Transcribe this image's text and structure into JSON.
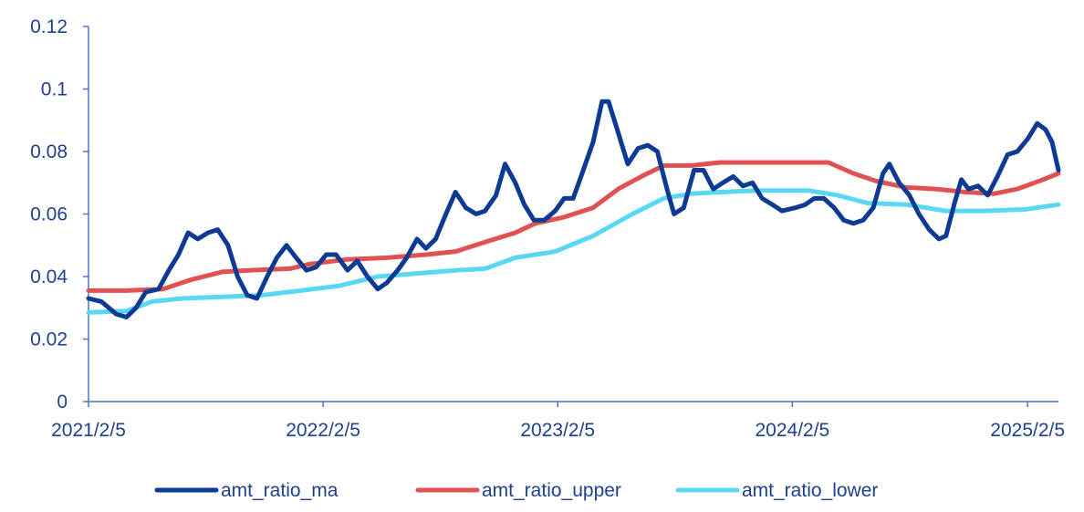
{
  "chart_data": {
    "type": "line",
    "title": "",
    "xlabel": "",
    "ylabel": "",
    "ylim": [
      0,
      0.12
    ],
    "y_ticks": [
      "0",
      "0.02",
      "0.04",
      "0.06",
      "0.08",
      "0.1",
      "0.12"
    ],
    "y_tick_values": [
      0,
      0.02,
      0.04,
      0.06,
      0.08,
      0.1,
      0.12
    ],
    "x_ticks": [
      "2021/2/5",
      "2022/2/5",
      "2023/2/5",
      "2024/2/5",
      "2025/2/5"
    ],
    "x_tick_dates": [
      "2021-02-05",
      "2022-02-05",
      "2023-02-05",
      "2024-02-05",
      "2025-02-05"
    ],
    "x_range": [
      "2021-02-05",
      "2025-03-25"
    ],
    "grid": false,
    "legend_position": "bottom",
    "series": [
      {
        "name": "amt_ratio_ma",
        "color": "#0d3a93",
        "points": [
          [
            "2021-02-05",
            0.033
          ],
          [
            "2021-02-25",
            0.032
          ],
          [
            "2021-03-20",
            0.028
          ],
          [
            "2021-04-05",
            0.027
          ],
          [
            "2021-04-20",
            0.03
          ],
          [
            "2021-05-05",
            0.035
          ],
          [
            "2021-05-25",
            0.036
          ],
          [
            "2021-06-10",
            0.042
          ],
          [
            "2021-06-25",
            0.047
          ],
          [
            "2021-07-10",
            0.054
          ],
          [
            "2021-07-25",
            0.052
          ],
          [
            "2021-08-10",
            0.054
          ],
          [
            "2021-08-25",
            0.055
          ],
          [
            "2021-09-10",
            0.05
          ],
          [
            "2021-09-25",
            0.04
          ],
          [
            "2021-10-10",
            0.034
          ],
          [
            "2021-10-25",
            0.033
          ],
          [
            "2021-11-10",
            0.04
          ],
          [
            "2021-11-25",
            0.046
          ],
          [
            "2021-12-10",
            0.05
          ],
          [
            "2021-12-25",
            0.046
          ],
          [
            "2022-01-10",
            0.042
          ],
          [
            "2022-01-25",
            0.043
          ],
          [
            "2022-02-10",
            0.047
          ],
          [
            "2022-02-25",
            0.047
          ],
          [
            "2022-03-15",
            0.042
          ],
          [
            "2022-03-30",
            0.045
          ],
          [
            "2022-04-15",
            0.04
          ],
          [
            "2022-05-01",
            0.036
          ],
          [
            "2022-05-15",
            0.038
          ],
          [
            "2022-06-01",
            0.042
          ],
          [
            "2022-06-15",
            0.046
          ],
          [
            "2022-07-01",
            0.052
          ],
          [
            "2022-07-15",
            0.049
          ],
          [
            "2022-07-30",
            0.052
          ],
          [
            "2022-08-15",
            0.06
          ],
          [
            "2022-08-30",
            0.067
          ],
          [
            "2022-09-15",
            0.062
          ],
          [
            "2022-10-01",
            0.06
          ],
          [
            "2022-10-15",
            0.061
          ],
          [
            "2022-11-01",
            0.066
          ],
          [
            "2022-11-15",
            0.076
          ],
          [
            "2022-12-01",
            0.07
          ],
          [
            "2022-12-15",
            0.063
          ],
          [
            "2022-12-30",
            0.058
          ],
          [
            "2023-01-15",
            0.058
          ],
          [
            "2023-02-01",
            0.061
          ],
          [
            "2023-02-15",
            0.065
          ],
          [
            "2023-03-01",
            0.065
          ],
          [
            "2023-03-15",
            0.073
          ],
          [
            "2023-04-01",
            0.083
          ],
          [
            "2023-04-15",
            0.096
          ],
          [
            "2023-04-25",
            0.096
          ],
          [
            "2023-05-10",
            0.086
          ],
          [
            "2023-05-25",
            0.076
          ],
          [
            "2023-06-10",
            0.081
          ],
          [
            "2023-06-25",
            0.082
          ],
          [
            "2023-07-10",
            0.08
          ],
          [
            "2023-07-25",
            0.068
          ],
          [
            "2023-08-05",
            0.06
          ],
          [
            "2023-08-20",
            0.062
          ],
          [
            "2023-09-05",
            0.074
          ],
          [
            "2023-09-20",
            0.074
          ],
          [
            "2023-10-05",
            0.068
          ],
          [
            "2023-10-20",
            0.07
          ],
          [
            "2023-11-05",
            0.072
          ],
          [
            "2023-11-20",
            0.069
          ],
          [
            "2023-12-05",
            0.07
          ],
          [
            "2023-12-20",
            0.065
          ],
          [
            "2024-01-05",
            0.063
          ],
          [
            "2024-01-20",
            0.061
          ],
          [
            "2024-02-10",
            0.062
          ],
          [
            "2024-02-25",
            0.063
          ],
          [
            "2024-03-10",
            0.065
          ],
          [
            "2024-03-25",
            0.065
          ],
          [
            "2024-04-10",
            0.062
          ],
          [
            "2024-04-25",
            0.058
          ],
          [
            "2024-05-10",
            0.057
          ],
          [
            "2024-05-25",
            0.058
          ],
          [
            "2024-06-10",
            0.062
          ],
          [
            "2024-06-25",
            0.073
          ],
          [
            "2024-07-05",
            0.076
          ],
          [
            "2024-07-20",
            0.07
          ],
          [
            "2024-08-05",
            0.066
          ],
          [
            "2024-08-20",
            0.06
          ],
          [
            "2024-09-05",
            0.055
          ],
          [
            "2024-09-20",
            0.052
          ],
          [
            "2024-10-01",
            0.053
          ],
          [
            "2024-10-15",
            0.064
          ],
          [
            "2024-10-25",
            0.071
          ],
          [
            "2024-11-05",
            0.068
          ],
          [
            "2024-11-20",
            0.069
          ],
          [
            "2024-12-05",
            0.066
          ],
          [
            "2024-12-20",
            0.072
          ],
          [
            "2025-01-05",
            0.079
          ],
          [
            "2025-01-20",
            0.08
          ],
          [
            "2025-02-05",
            0.084
          ],
          [
            "2025-02-20",
            0.089
          ],
          [
            "2025-03-05",
            0.087
          ],
          [
            "2025-03-15",
            0.083
          ],
          [
            "2025-03-25",
            0.074
          ]
        ]
      },
      {
        "name": "amt_ratio_upper",
        "color": "#e05252",
        "points": [
          [
            "2021-02-05",
            0.0355
          ],
          [
            "2021-04-05",
            0.0355
          ],
          [
            "2021-06-01",
            0.036
          ],
          [
            "2021-07-15",
            0.039
          ],
          [
            "2021-09-01",
            0.0415
          ],
          [
            "2021-10-15",
            0.042
          ],
          [
            "2021-12-15",
            0.0425
          ],
          [
            "2022-01-15",
            0.044
          ],
          [
            "2022-03-15",
            0.0455
          ],
          [
            "2022-05-15",
            0.046
          ],
          [
            "2022-07-15",
            0.047
          ],
          [
            "2022-08-30",
            0.048
          ],
          [
            "2022-10-15",
            0.051
          ],
          [
            "2022-12-01",
            0.054
          ],
          [
            "2023-01-01",
            0.057
          ],
          [
            "2023-02-15",
            0.059
          ],
          [
            "2023-04-01",
            0.062
          ],
          [
            "2023-05-10",
            0.068
          ],
          [
            "2023-06-15",
            0.072
          ],
          [
            "2023-07-20",
            0.0755
          ],
          [
            "2023-09-01",
            0.0755
          ],
          [
            "2023-10-15",
            0.0765
          ],
          [
            "2023-12-01",
            0.0765
          ],
          [
            "2024-02-01",
            0.0765
          ],
          [
            "2024-04-01",
            0.0765
          ],
          [
            "2024-05-10",
            0.073
          ],
          [
            "2024-06-15",
            0.0705
          ],
          [
            "2024-08-01",
            0.0685
          ],
          [
            "2024-09-15",
            0.068
          ],
          [
            "2024-11-01",
            0.067
          ],
          [
            "2024-12-15",
            0.0665
          ],
          [
            "2025-01-20",
            0.068
          ],
          [
            "2025-03-01",
            0.071
          ],
          [
            "2025-03-25",
            0.073
          ]
        ]
      },
      {
        "name": "amt_ratio_lower",
        "color": "#5ad7f5",
        "points": [
          [
            "2021-02-05",
            0.0285
          ],
          [
            "2021-04-05",
            0.029
          ],
          [
            "2021-05-15",
            0.032
          ],
          [
            "2021-07-01",
            0.033
          ],
          [
            "2021-09-01",
            0.0335
          ],
          [
            "2021-11-01",
            0.034
          ],
          [
            "2022-01-01",
            0.0355
          ],
          [
            "2022-03-01",
            0.037
          ],
          [
            "2022-05-01",
            0.04
          ],
          [
            "2022-07-01",
            0.041
          ],
          [
            "2022-09-01",
            0.042
          ],
          [
            "2022-10-15",
            0.0425
          ],
          [
            "2022-12-01",
            0.046
          ],
          [
            "2023-02-01",
            0.048
          ],
          [
            "2023-04-01",
            0.053
          ],
          [
            "2023-06-01",
            0.06
          ],
          [
            "2023-07-20",
            0.065
          ],
          [
            "2023-09-01",
            0.0665
          ],
          [
            "2023-10-15",
            0.067
          ],
          [
            "2023-12-15",
            0.0675
          ],
          [
            "2024-03-01",
            0.0675
          ],
          [
            "2024-04-15",
            0.066
          ],
          [
            "2024-06-01",
            0.0635
          ],
          [
            "2024-08-01",
            0.063
          ],
          [
            "2024-10-01",
            0.061
          ],
          [
            "2024-12-01",
            0.061
          ],
          [
            "2025-02-01",
            0.0615
          ],
          [
            "2025-03-25",
            0.063
          ]
        ]
      }
    ]
  }
}
